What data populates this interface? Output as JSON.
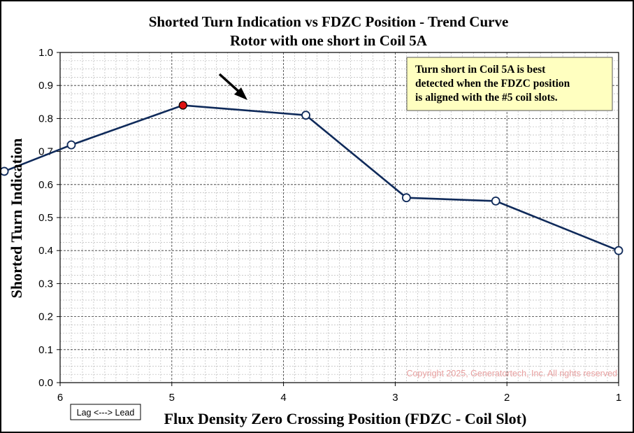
{
  "chart_data": {
    "type": "line",
    "title": "Shorted Turn Indication vs FDZC Position - Trend Curve",
    "subtitle": "Rotor with one short in Coil 5A",
    "xlabel": "Flux Density Zero Crossing Position (FDZC - Coil Slot)",
    "ylabel": "Shorted Turn Indication",
    "xlim": [
      6,
      1
    ],
    "ylim": [
      0,
      1.0
    ],
    "x_reversed": true,
    "x_ticks": [
      6,
      5,
      4,
      3,
      2,
      1
    ],
    "y_ticks": [
      0,
      0.1,
      0.2,
      0.3,
      0.4,
      0.5,
      0.6,
      0.7,
      0.8,
      0.9,
      1.0
    ],
    "grid": true,
    "series": [
      {
        "name": "Shorted Turn Indication",
        "color": "#0f2a5a",
        "x": [
          6.5,
          5.9,
          4.9,
          3.8,
          2.9,
          2.1,
          1.0
        ],
        "y": [
          0.64,
          0.72,
          0.84,
          0.81,
          0.56,
          0.55,
          0.4
        ],
        "highlight_index": 2,
        "highlight_color": "#dd1111"
      }
    ],
    "annotation": {
      "lines": [
        "Turn short in Coil 5A is best",
        "detected when the FDZC position",
        "is aligned with the #5 coil slots."
      ],
      "background": "#ffffc0",
      "placement": "top-right"
    },
    "lag_lead_label": "Lag <---> Lead",
    "copyright": "Copyright 2025, Generatortech, Inc. All rights reserved"
  }
}
